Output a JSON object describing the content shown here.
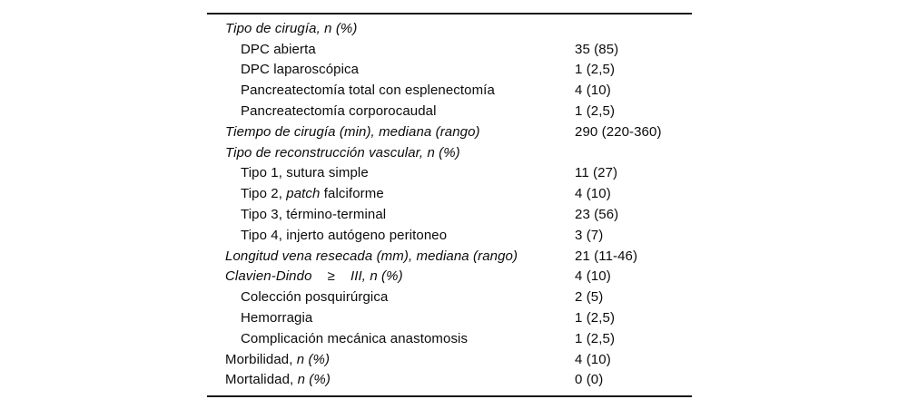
{
  "page": {
    "background": "#ffffff",
    "text_color": "#0b0b0b",
    "rule_color": "#1a1a1a"
  },
  "table": {
    "description": "surgical-outcomes-table",
    "columns": [
      "variable",
      "value"
    ],
    "rows": [
      {
        "indent": 0,
        "parts": [
          {
            "text": "Tipo de cirugía, n (%)",
            "italic": true
          }
        ],
        "value": ""
      },
      {
        "indent": 1,
        "parts": [
          {
            "text": "DPC abierta",
            "italic": false
          }
        ],
        "value": "35 (85)"
      },
      {
        "indent": 1,
        "parts": [
          {
            "text": "DPC laparoscópica",
            "italic": false
          }
        ],
        "value": "1 (2,5)"
      },
      {
        "indent": 1,
        "parts": [
          {
            "text": "Pancreatectomía total con esplenectomía",
            "italic": false
          }
        ],
        "value": "4 (10)"
      },
      {
        "indent": 1,
        "parts": [
          {
            "text": "Pancreatectomía corporocaudal",
            "italic": false
          }
        ],
        "value": "1 (2,5)"
      },
      {
        "indent": 0,
        "parts": [
          {
            "text": "Tiempo de cirugía (min), mediana (rango)",
            "italic": true
          }
        ],
        "value": "290 (220-360)"
      },
      {
        "indent": 0,
        "parts": [
          {
            "text": "Tipo de reconstrucción vascular, n (%)",
            "italic": true
          }
        ],
        "value": ""
      },
      {
        "indent": 1,
        "parts": [
          {
            "text": "Tipo 1, sutura simple",
            "italic": false
          }
        ],
        "value": "11 (27)"
      },
      {
        "indent": 1,
        "parts": [
          {
            "text": "Tipo 2, ",
            "italic": false
          },
          {
            "text": "patch",
            "italic": true
          },
          {
            "text": " falciforme",
            "italic": false
          }
        ],
        "value": "4 (10)"
      },
      {
        "indent": 1,
        "parts": [
          {
            "text": "Tipo 3, término-terminal",
            "italic": false
          }
        ],
        "value": "23 (56)"
      },
      {
        "indent": 1,
        "parts": [
          {
            "text": "Tipo 4, injerto autógeno peritoneo",
            "italic": false
          }
        ],
        "value": "3 (7)"
      },
      {
        "indent": 0,
        "parts": [
          {
            "text": "Longitud vena resecada (mm), mediana (rango)",
            "italic": true
          }
        ],
        "value": "21 (11-46)"
      },
      {
        "indent": 0,
        "parts": [
          {
            "text": "Clavien-Dindo    ≥    III, n (%)",
            "italic": true
          }
        ],
        "value": "4 (10)"
      },
      {
        "indent": 1,
        "parts": [
          {
            "text": "Colección posquirúrgica",
            "italic": false
          }
        ],
        "value": "2 (5)"
      },
      {
        "indent": 1,
        "parts": [
          {
            "text": "Hemorragia",
            "italic": false
          }
        ],
        "value": "1 (2,5)"
      },
      {
        "indent": 1,
        "parts": [
          {
            "text": "Complicación mecánica anastomosis",
            "italic": false
          }
        ],
        "value": "1 (2,5)"
      },
      {
        "indent": 0,
        "parts": [
          {
            "text": "Morbilidad, ",
            "italic": false
          },
          {
            "text": "n (%)",
            "italic": true
          }
        ],
        "value": "4 (10)"
      },
      {
        "indent": 0,
        "parts": [
          {
            "text": "Mortalidad, ",
            "italic": false
          },
          {
            "text": "n (%)",
            "italic": true
          }
        ],
        "value": "0 (0)"
      }
    ]
  }
}
